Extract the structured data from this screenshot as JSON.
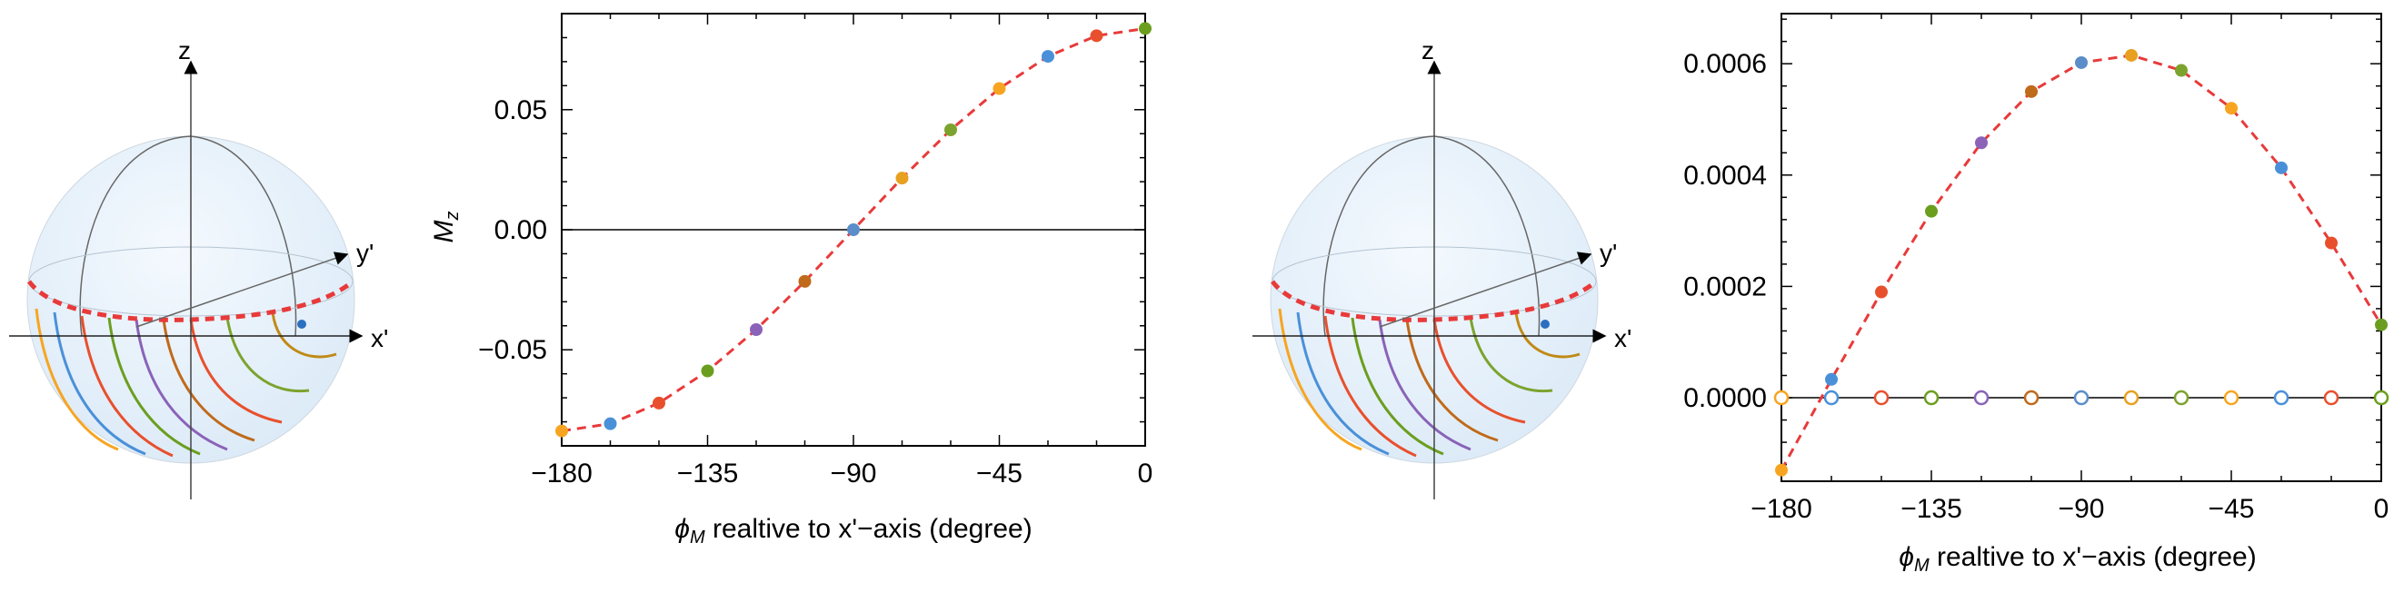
{
  "sphere_left": {
    "axis_labels": {
      "z": "z",
      "y": "y'",
      "x": "x'"
    }
  },
  "sphere_right": {
    "axis_labels": {
      "z": "z",
      "y": "y'",
      "x": "x'"
    }
  },
  "palette": [
    "#F7A521",
    "#4A90D9",
    "#E8502D",
    "#6B9E1F",
    "#8A63B8",
    "#C06A1B",
    "#5B8DC8",
    "#E8A020",
    "#7CA32E"
  ],
  "dashed_color": "#E83A3A",
  "chart_data": [
    {
      "type": "scatter",
      "title": "",
      "xlabel": "ϕ_M realtive to x'−axis (degree)",
      "xlabel_main": "ϕ",
      "xlabel_sub": "M",
      "xlabel_rest": " realtive to x'−axis (degree)",
      "ylabel": "M_z",
      "ylabel_main": "M",
      "ylabel_sub": "z",
      "xlim": [
        -180,
        0
      ],
      "ylim": [
        -0.09,
        0.09
      ],
      "xticks": [
        -180,
        -135,
        -90,
        -45,
        0
      ],
      "xtick_labels": [
        "−180",
        "−135",
        "−90",
        "−45",
        "0"
      ],
      "yticks": [
        -0.05,
        0.0,
        0.05
      ],
      "ytick_labels": [
        "−0.05",
        "0.00",
        "0.05"
      ],
      "zero_line": 0,
      "series": [
        {
          "style": "dashed-line-with-filled-points",
          "x": [
            -180,
            -165,
            -150,
            -135,
            -120,
            -105,
            -90,
            -75,
            -60,
            -45,
            -30,
            -15,
            0
          ],
          "y": [
            -0.0838,
            -0.0808,
            -0.0722,
            -0.0588,
            -0.0416,
            -0.0215,
            0.0,
            0.0215,
            0.0416,
            0.0588,
            0.0722,
            0.0808,
            0.0838
          ]
        }
      ],
      "grid": false,
      "legend": "none"
    },
    {
      "type": "scatter",
      "title": "",
      "xlabel": "ϕ_M realtive to x'−axis  (degree)",
      "xlabel_main": "ϕ",
      "xlabel_sub": "M",
      "xlabel_rest": " realtive to x'−axis  (degree)",
      "ylabel": "",
      "xlim": [
        -180,
        0
      ],
      "ylim": [
        -0.00015,
        0.00069
      ],
      "xticks": [
        -180,
        -135,
        -90,
        -45,
        0
      ],
      "xtick_labels": [
        "−180",
        "−135",
        "−90",
        "−45",
        "0"
      ],
      "yticks": [
        0.0,
        0.0002,
        0.0004,
        0.0006
      ],
      "ytick_labels": [
        "0.0000",
        "0.0002",
        "0.0004",
        "0.0006"
      ],
      "zero_line": 0,
      "series": [
        {
          "style": "dashed-line-with-filled-points",
          "x": [
            -180,
            -165,
            -150,
            -135,
            -120,
            -105,
            -90,
            -75,
            -60,
            -45,
            -30,
            -15,
            0
          ],
          "y": [
            -0.00013,
            3.3e-05,
            0.00019,
            0.000335,
            0.000458,
            0.00055,
            0.000602,
            0.000615,
            0.000588,
            0.00052,
            0.000413,
            0.000278,
            0.000131
          ]
        },
        {
          "style": "open-circles",
          "x": [
            -180,
            -165,
            -150,
            -135,
            -120,
            -105,
            -90,
            -75,
            -60,
            -45,
            -30,
            -15,
            0
          ],
          "y": [
            0,
            0,
            0,
            0,
            0,
            0,
            0,
            0,
            0,
            0,
            0,
            0,
            0
          ]
        }
      ],
      "grid": false,
      "legend": "none"
    }
  ]
}
